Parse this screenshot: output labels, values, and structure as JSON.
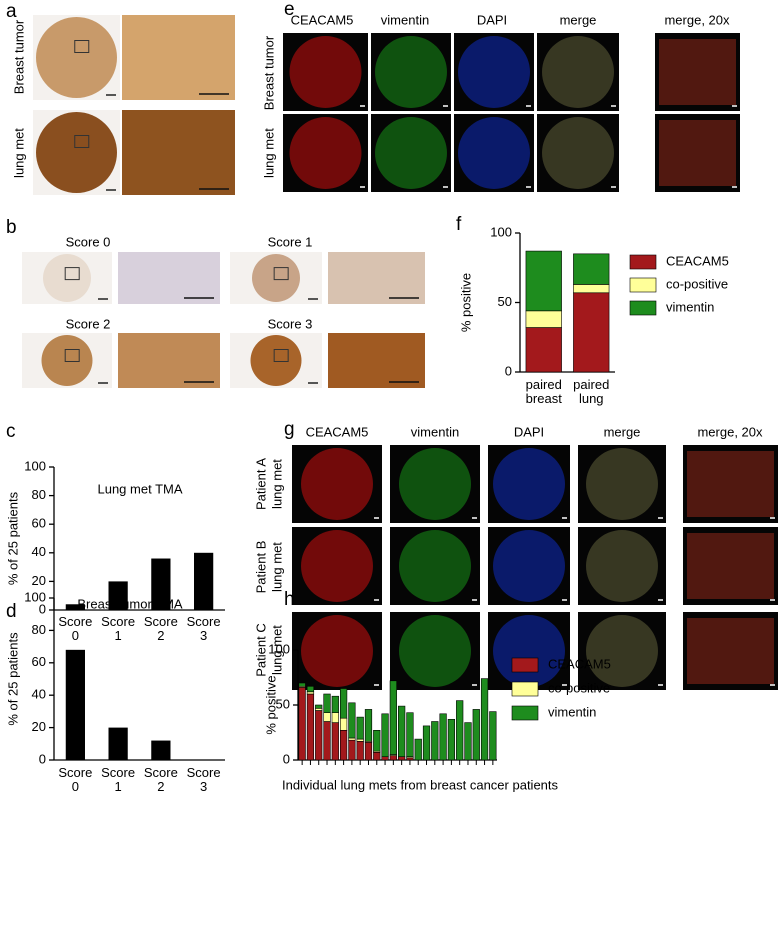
{
  "figure": {
    "panel_a": {
      "letter": "a",
      "rows": [
        "Breast tumor",
        "lung met"
      ]
    },
    "panel_b": {
      "letter": "b",
      "scores": [
        "Score 0",
        "Score 1",
        "Score 2",
        "Score 3"
      ]
    },
    "panel_e": {
      "letter": "e",
      "channels": [
        {
          "name": "CEACAM5",
          "color": "#e3121b"
        },
        {
          "name": "vimentin",
          "color": "#1f9a1f"
        },
        {
          "name": "DAPI",
          "color": "#1f3fd6"
        },
        {
          "name": "merge",
          "color": "#000000"
        },
        {
          "name": "merge, 20x",
          "color": "#000000"
        }
      ],
      "rows": [
        "Breast tumor",
        "lung met"
      ]
    },
    "panel_g": {
      "letter": "g",
      "channels": [
        {
          "name": "CEACAM5",
          "color": "#e3121b"
        },
        {
          "name": "vimentin",
          "color": "#1f9a1f"
        },
        {
          "name": "DAPI",
          "color": "#1f3fd6"
        },
        {
          "name": "merge",
          "color": "#000000"
        },
        {
          "name": "merge, 20x",
          "color": "#000000"
        }
      ],
      "rows": [
        {
          "line1": "Patient A",
          "line2": "lung met"
        },
        {
          "line1": "Patient B",
          "line2": "lung met"
        },
        {
          "line1": "Patient C",
          "line2": "lung met"
        }
      ]
    }
  },
  "chart_data": [
    {
      "panel": "c",
      "type": "bar",
      "title": "Lung met TMA",
      "y_label": "% of 25 patients",
      "categories": [
        "Score 0",
        "Score 1",
        "Score 2",
        "Score 3"
      ],
      "values": [
        4,
        20,
        36,
        40
      ],
      "color": "#000000",
      "ylim": [
        0,
        100
      ],
      "yticks": [
        0,
        20,
        40,
        60,
        80,
        100
      ]
    },
    {
      "panel": "d",
      "type": "bar",
      "title": "Breast tumor TMA",
      "y_label": "% of 25 patients",
      "categories": [
        "Score 0",
        "Score 1",
        "Score 2",
        "Score 3"
      ],
      "values": [
        68,
        20,
        12,
        0
      ],
      "color": "#000000",
      "ylim": [
        0,
        100
      ],
      "yticks": [
        0,
        20,
        40,
        60,
        80,
        100
      ]
    },
    {
      "panel": "f",
      "type": "stacked_bar",
      "y_label": "% positive",
      "categories": [
        "paired breast",
        "paired lung"
      ],
      "series": [
        {
          "name": "CEACAM5",
          "color": "#a3191c",
          "values": [
            32,
            57
          ]
        },
        {
          "name": "co-positive",
          "color": "#ffff99",
          "values": [
            12,
            6
          ]
        },
        {
          "name": "vimentin",
          "color": "#1e8c1e",
          "values": [
            43,
            22
          ]
        }
      ],
      "ylim": [
        0,
        100
      ],
      "yticks": [
        0,
        50,
        100
      ],
      "legend": "right"
    },
    {
      "panel": "h",
      "type": "stacked_bar",
      "y_label": "% positive",
      "x_label": "Individual lung mets from breast cancer patients",
      "categories": [
        null,
        null,
        null,
        null,
        null,
        null,
        null,
        null,
        null,
        null,
        null,
        null,
        null,
        null,
        null,
        null,
        null,
        null,
        null,
        null,
        null,
        null,
        null,
        null
      ],
      "series": [
        {
          "name": "CEACAM5",
          "color": "#a3191c",
          "values": [
            66,
            60,
            45,
            35,
            34,
            27,
            18,
            17,
            16,
            7,
            3,
            4,
            3,
            2,
            0,
            0,
            0,
            0,
            0,
            0,
            0,
            0,
            0,
            0
          ]
        },
        {
          "name": "co-positive",
          "color": "#ffff99",
          "values": [
            1,
            2,
            2,
            8,
            9,
            11,
            2,
            2,
            1,
            1,
            0,
            1,
            0,
            1,
            0,
            0,
            0,
            0,
            0,
            0,
            0,
            0,
            0,
            0
          ]
        },
        {
          "name": "vimentin",
          "color": "#1e8c1e",
          "values": [
            3,
            5,
            3,
            17,
            15,
            27,
            32,
            20,
            29,
            19,
            39,
            67,
            46,
            40,
            19,
            31,
            35,
            42,
            37,
            54,
            34,
            46,
            74,
            44
          ]
        }
      ],
      "ylim": [
        0,
        100
      ],
      "yticks": [
        0,
        50,
        100
      ],
      "legend": "right"
    }
  ]
}
